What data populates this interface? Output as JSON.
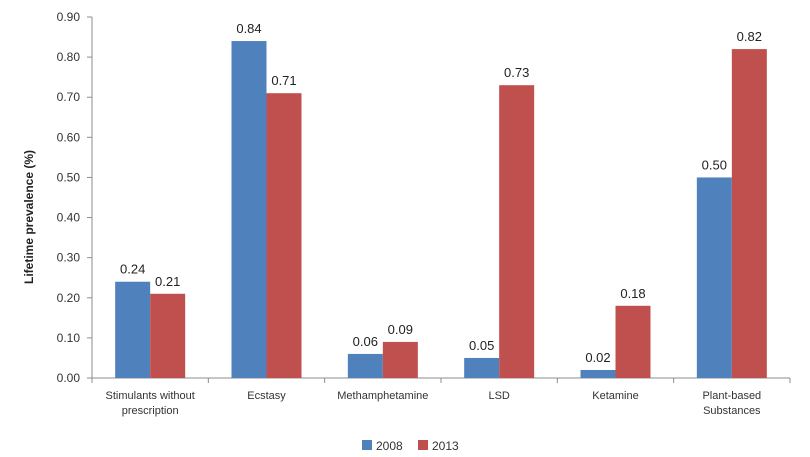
{
  "chart_data": {
    "type": "bar",
    "categories": [
      [
        "Stimulants without",
        "prescription"
      ],
      [
        "Ecstasy"
      ],
      [
        "Methamphetamine"
      ],
      [
        "LSD"
      ],
      [
        "Ketamine"
      ],
      [
        "Plant-based",
        "Substances"
      ]
    ],
    "series": [
      {
        "name": "2008",
        "color": "#4f81bd",
        "values": [
          0.24,
          0.84,
          0.06,
          0.05,
          0.02,
          0.5
        ],
        "labels": [
          "0.24",
          "0.84",
          "0.06",
          "0.05",
          "0.02",
          "0.50"
        ]
      },
      {
        "name": "2013",
        "color": "#c0504d",
        "values": [
          0.21,
          0.71,
          0.09,
          0.73,
          0.18,
          0.82
        ],
        "labels": [
          "0.21",
          "0.71",
          "0.09",
          "0.73",
          "0.18",
          "0.82"
        ]
      }
    ],
    "title": "",
    "xlabel": "",
    "ylabel": "Lifetime prevalence (%)",
    "ylim": [
      0,
      0.9
    ],
    "yticks": [
      "0.00",
      "0.10",
      "0.20",
      "0.30",
      "0.40",
      "0.50",
      "0.60",
      "0.70",
      "0.80",
      "0.90"
    ],
    "grid": false,
    "legend": "bottom-center"
  }
}
